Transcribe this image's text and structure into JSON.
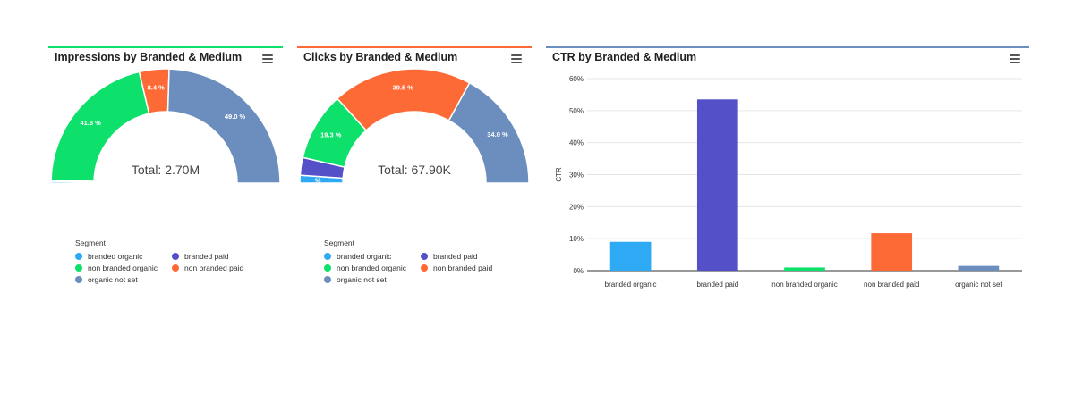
{
  "colors": {
    "branded_organic": "#2eaaf5",
    "branded_paid": "#5450c7",
    "non_branded_organic": "#0ee06c",
    "non_branded_paid": "#fe6a35",
    "organic_not_set": "#6c8ebf"
  },
  "legend": {
    "title": "Segment",
    "items": [
      {
        "label": "branded organic",
        "color": "#2eaaf5"
      },
      {
        "label": "branded paid",
        "color": "#5450c7"
      },
      {
        "label": "non branded organic",
        "color": "#0ee06c"
      },
      {
        "label": "non branded paid",
        "color": "#fe6a35"
      },
      {
        "label": "organic not set",
        "color": "#6c8ebf"
      }
    ]
  },
  "panels": {
    "impressions": {
      "title": "Impressions by Branded & Medium",
      "accent": "#0ee06c"
    },
    "clicks": {
      "title": "Clicks by Branded & Medium",
      "accent": "#fe6a35"
    },
    "ctr": {
      "title": "CTR by Branded & Medium",
      "accent": "#6c8ebf"
    }
  },
  "chart_data": [
    {
      "type": "pie",
      "variant": "semi-donut",
      "title": "Impressions by Branded & Medium",
      "center_label": "Total: 2.70M",
      "legend_title": "Segment",
      "legend_position": "bottom-left",
      "slices": [
        {
          "name": "branded organic",
          "value": 0.5,
          "label": "",
          "color": "#2eaaf5"
        },
        {
          "name": "branded paid",
          "value": 0.3,
          "label": "",
          "color": "#5450c7"
        },
        {
          "name": "non branded organic",
          "value": 41.8,
          "label": "41.8 %",
          "color": "#0ee06c"
        },
        {
          "name": "non branded paid",
          "value": 8.4,
          "label": "8.4 %",
          "color": "#fe6a35"
        },
        {
          "name": "organic not set",
          "value": 49.0,
          "label": "49.0 %",
          "color": "#6c8ebf"
        }
      ]
    },
    {
      "type": "pie",
      "variant": "semi-donut",
      "title": "Clicks by Branded & Medium",
      "center_label": "Total: 67.90K",
      "legend_title": "Segment",
      "legend_position": "bottom-left",
      "slices": [
        {
          "name": "branded organic",
          "value": 2.2,
          "label": "%",
          "color": "#2eaaf5"
        },
        {
          "name": "branded paid",
          "value": 5.0,
          "label": "",
          "color": "#5450c7"
        },
        {
          "name": "non branded organic",
          "value": 19.3,
          "label": "19.3 %",
          "color": "#0ee06c"
        },
        {
          "name": "non branded paid",
          "value": 39.5,
          "label": "39.5 %",
          "color": "#fe6a35"
        },
        {
          "name": "organic not set",
          "value": 34.0,
          "label": "34.0 %",
          "color": "#6c8ebf"
        }
      ]
    },
    {
      "type": "bar",
      "title": "CTR by Branded & Medium",
      "xlabel": "",
      "ylabel": "CTR",
      "ylim": [
        0,
        60
      ],
      "yticks": [
        "0%",
        "10%",
        "20%",
        "30%",
        "40%",
        "50%",
        "60%"
      ],
      "ytick_values": [
        0,
        10,
        20,
        30,
        40,
        50,
        60
      ],
      "grid": true,
      "categories": [
        "branded organic",
        "branded paid",
        "non branded organic",
        "non branded paid",
        "organic not set"
      ],
      "values": [
        9.0,
        53.5,
        1.0,
        11.7,
        1.5
      ],
      "colors": [
        "#2eaaf5",
        "#5450c7",
        "#0ee06c",
        "#fe6a35",
        "#6c8ebf"
      ]
    }
  ]
}
